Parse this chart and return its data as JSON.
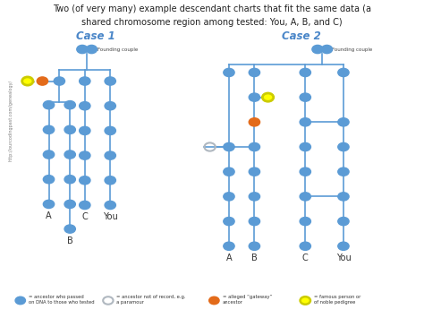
{
  "title_line1": "Two (of very many) example descendant charts that fit the same data (a",
  "title_line2": "shared chromosome region among tested: You, A, B, and C)",
  "case1_label": "Case 1",
  "case2_label": "Case 2",
  "blue_color": "#5b9bd5",
  "orange_color": "#e36b1a",
  "yellow_color": "#ffff00",
  "yellow_outline": "#cccc00",
  "open_circle_color": "#b0b8c0",
  "line_color": "#5b9bd5",
  "watermark": "http://ourcodingpast.com/genealogy/",
  "node_r": 0.013,
  "lw": 1.2
}
